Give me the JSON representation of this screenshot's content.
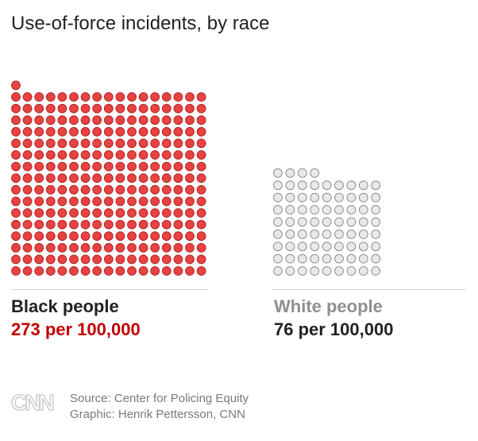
{
  "title": "Use-of-force incidents, by race",
  "chart_data": {
    "type": "waffle",
    "title": "Use-of-force incidents, by race",
    "unit": "incidents per 100,000 people",
    "series": [
      {
        "name": "Black people",
        "value": 273,
        "value_label": "273 per 100,000",
        "columns": 17,
        "color": "#e84242",
        "stroke": "#b32424",
        "label_color": "#222222",
        "value_color": "#c00000"
      },
      {
        "name": "White people",
        "value": 76,
        "value_label": "76 per 100,000",
        "columns": 9,
        "color": "#e9e9e9",
        "stroke": "#8e8e8e",
        "label_color": "#8f8f8f",
        "value_color": "#222222"
      }
    ]
  },
  "footer": {
    "logo": "CNN",
    "source": "Source: Center for Policing Equity",
    "graphic": "Graphic: Henrik Pettersson, CNN"
  }
}
